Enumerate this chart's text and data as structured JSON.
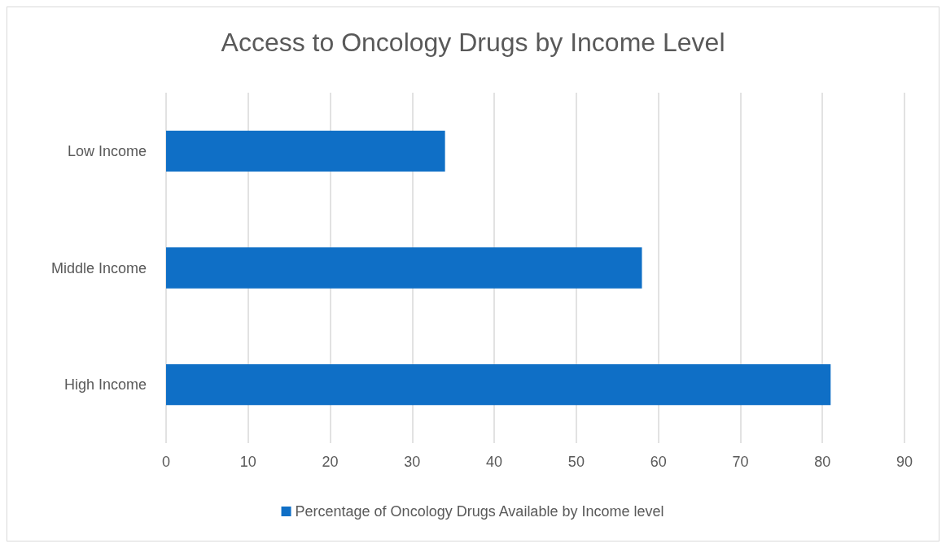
{
  "chart_data": {
    "type": "bar",
    "orientation": "horizontal",
    "title": "Access to Oncology Drugs by Income Level",
    "categories": [
      "Low Income",
      "Middle Income",
      "High Income"
    ],
    "series": [
      {
        "name": "Percentage of Oncology Drugs Available by Income level",
        "color": "#0f6fc6",
        "values": [
          34,
          58,
          81
        ]
      }
    ],
    "xlim": [
      0,
      90
    ],
    "xticks": [
      0,
      10,
      20,
      30,
      40,
      50,
      60,
      70,
      80,
      90
    ],
    "grid": "x",
    "legend": "bottom"
  }
}
